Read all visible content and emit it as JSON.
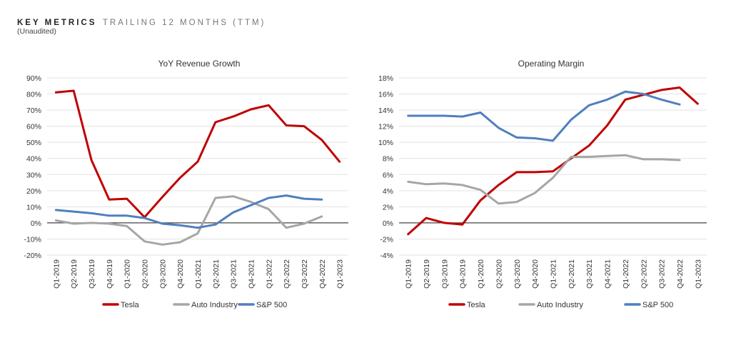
{
  "header": {
    "title": "KEY METRICS",
    "subtitle": "TRAILING 12 MONTHS (TTM)",
    "note": "(Unaudited)"
  },
  "colors": {
    "tesla": "#c00000",
    "auto": "#a6a6a6",
    "sp500": "#4f7fbf",
    "grid": "#e3e3e3",
    "zero": "#444444"
  },
  "chart_data": [
    {
      "type": "line",
      "title": "YoY Revenue Growth",
      "xlabel": "",
      "ylabel": "",
      "ylim": [
        -20,
        90
      ],
      "ytick_step": 10,
      "yticks": [
        "-20%",
        "-10%",
        "0%",
        "10%",
        "20%",
        "30%",
        "40%",
        "50%",
        "60%",
        "70%",
        "80%",
        "90%"
      ],
      "grid": true,
      "legend": "bottom",
      "categories": [
        "Q1-2019",
        "Q2-2019",
        "Q3-2019",
        "Q4-2019",
        "Q1-2020",
        "Q2-2020",
        "Q3-2020",
        "Q4-2020",
        "Q1-2021",
        "Q2-2021",
        "Q3-2021",
        "Q4-2021",
        "Q1-2022",
        "Q2-2022",
        "Q3-2022",
        "Q4-2022",
        "Q1-2023"
      ],
      "series": [
        {
          "name": "Tesla",
          "color": "#c00000",
          "values": [
            81,
            82,
            39,
            14.5,
            15,
            3.5,
            16,
            28,
            38,
            62.5,
            66,
            70.5,
            73,
            60.5,
            60,
            51.5,
            38
          ]
        },
        {
          "name": "Auto Industry",
          "color": "#a6a6a6",
          "values": [
            1.5,
            -0.5,
            0,
            -0.5,
            -2,
            -11.5,
            -13.5,
            -12,
            -6.5,
            15.5,
            16.5,
            13,
            8.5,
            -3,
            -0.5,
            4,
            null
          ]
        },
        {
          "name": "S&P 500",
          "color": "#4f7fbf",
          "values": [
            8,
            7,
            6,
            4.5,
            4.5,
            3,
            -0.5,
            -1.5,
            -3,
            -1,
            6.5,
            11,
            15.5,
            17,
            15,
            14.5,
            null
          ]
        }
      ]
    },
    {
      "type": "line",
      "title": "Operating Margin",
      "xlabel": "",
      "ylabel": "",
      "ylim": [
        -4,
        18
      ],
      "ytick_step": 2,
      "yticks": [
        "-4%",
        "-2%",
        "0%",
        "2%",
        "4%",
        "6%",
        "8%",
        "10%",
        "12%",
        "14%",
        "16%",
        "18%"
      ],
      "grid": true,
      "legend": "bottom",
      "categories": [
        "Q1-2019",
        "Q2-2019",
        "Q3-2019",
        "Q4-2019",
        "Q1-2020",
        "Q2-2020",
        "Q3-2020",
        "Q4-2020",
        "Q1-2021",
        "Q2-2021",
        "Q3-2021",
        "Q4-2021",
        "Q1-2022",
        "Q2-2022",
        "Q3-2022",
        "Q4-2022",
        "Q1-2023"
      ],
      "series": [
        {
          "name": "Tesla",
          "color": "#c00000",
          "values": [
            -1.4,
            0.6,
            0,
            -0.2,
            2.8,
            4.7,
            6.3,
            6.3,
            6.4,
            8,
            9.6,
            12.1,
            15.3,
            15.9,
            16.5,
            16.8,
            14.8
          ]
        },
        {
          "name": "Auto Industry",
          "color": "#a6a6a6",
          "values": [
            5.1,
            4.8,
            4.9,
            4.7,
            4.1,
            2.4,
            2.6,
            3.7,
            5.6,
            8.2,
            8.2,
            8.3,
            8.4,
            7.9,
            7.9,
            7.8,
            null
          ]
        },
        {
          "name": "S&P 500",
          "color": "#4f7fbf",
          "values": [
            13.3,
            13.3,
            13.3,
            13.2,
            13.7,
            11.8,
            10.6,
            10.5,
            10.2,
            12.8,
            14.6,
            15.3,
            16.3,
            16.0,
            15.3,
            14.7,
            null
          ]
        }
      ]
    }
  ]
}
